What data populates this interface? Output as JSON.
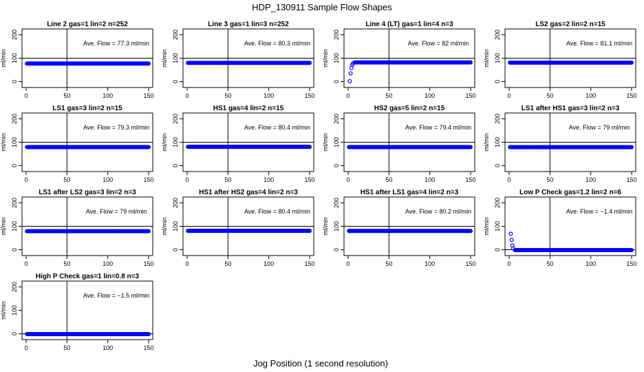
{
  "figure": {
    "title": "HDP_130911  Sample Flow Shapes",
    "xlabel": "Jog Position (1 second resolution)",
    "ylabel": "ml/min",
    "colors": {
      "points": "#0000ff",
      "axes": "#000000",
      "text": "#000000",
      "background": "#ffffff"
    }
  },
  "chart_data": [
    {
      "type": "scatter",
      "title": "Line 2 gas=1 lin=2 n=252",
      "annotation": "Ave. Flow =  77.3  ml/min",
      "xlim": [
        0,
        150
      ],
      "ylim": [
        -25,
        225
      ],
      "xticks": [
        0,
        50,
        100,
        150
      ],
      "yticks": [
        0,
        100,
        200
      ],
      "vline": 50,
      "hline": 100,
      "series": [
        {
          "name": "flow",
          "profile": "flat",
          "x_range": [
            1,
            150
          ],
          "value": 77.3
        }
      ]
    },
    {
      "type": "scatter",
      "title": "Line 3 gas=1 lin=3 n=252",
      "annotation": "Ave. Flow =  80.3  ml/min",
      "xlim": [
        0,
        150
      ],
      "ylim": [
        -25,
        225
      ],
      "xticks": [
        0,
        50,
        100,
        150
      ],
      "yticks": [
        0,
        100,
        200
      ],
      "vline": 50,
      "hline": 100,
      "series": [
        {
          "name": "flow",
          "profile": "flat",
          "x_range": [
            1,
            150
          ],
          "value": 80.3
        }
      ]
    },
    {
      "type": "scatter",
      "title": "Line 4 (LT) gas=1 lin=4 n=3",
      "annotation": "Ave. Flow =  82  ml/min",
      "xlim": [
        0,
        150
      ],
      "ylim": [
        -25,
        225
      ],
      "xticks": [
        0,
        50,
        100,
        150
      ],
      "yticks": [
        0,
        100,
        200
      ],
      "vline": 50,
      "hline": 100,
      "series": [
        {
          "name": "flow",
          "profile": "flat",
          "x_range": [
            8,
            150
          ],
          "value": 82,
          "extra_points": [
            {
              "x": 2,
              "y": 2
            },
            {
              "x": 3,
              "y": 35
            },
            {
              "x": 4,
              "y": 58
            },
            {
              "x": 5,
              "y": 72
            },
            {
              "x": 6,
              "y": 78
            }
          ]
        }
      ]
    },
    {
      "type": "scatter",
      "title": "LS2 gas=2 lin=2 n=15",
      "annotation": "Ave. Flow =  81.1  ml/min",
      "xlim": [
        0,
        150
      ],
      "ylim": [
        -25,
        225
      ],
      "xticks": [
        0,
        50,
        100,
        150
      ],
      "yticks": [
        0,
        100,
        200
      ],
      "vline": 50,
      "hline": 100,
      "series": [
        {
          "name": "flow",
          "profile": "flat",
          "x_range": [
            1,
            150
          ],
          "value": 81.1
        }
      ]
    },
    {
      "type": "scatter",
      "title": "LS1 gas=3 lin=2 n=15",
      "annotation": "Ave. Flow =  79.3  ml/min",
      "xlim": [
        0,
        150
      ],
      "ylim": [
        -25,
        225
      ],
      "xticks": [
        0,
        50,
        100,
        150
      ],
      "yticks": [
        0,
        100,
        200
      ],
      "vline": 50,
      "hline": 100,
      "series": [
        {
          "name": "flow",
          "profile": "flat",
          "x_range": [
            1,
            150
          ],
          "value": 79.3
        }
      ]
    },
    {
      "type": "scatter",
      "title": "HS1 gas=4 lin=2 n=15",
      "annotation": "Ave. Flow =  80.4  ml/min",
      "xlim": [
        0,
        150
      ],
      "ylim": [
        -25,
        225
      ],
      "xticks": [
        0,
        50,
        100,
        150
      ],
      "yticks": [
        0,
        100,
        200
      ],
      "vline": 50,
      "hline": 100,
      "series": [
        {
          "name": "flow",
          "profile": "flat",
          "x_range": [
            1,
            150
          ],
          "value": 80.4
        }
      ]
    },
    {
      "type": "scatter",
      "title": "HS2 gas=5 lin=2 n=15",
      "annotation": "Ave. Flow =  79.4  ml/min",
      "xlim": [
        0,
        150
      ],
      "ylim": [
        -25,
        225
      ],
      "xticks": [
        0,
        50,
        100,
        150
      ],
      "yticks": [
        0,
        100,
        200
      ],
      "vline": 50,
      "hline": 100,
      "series": [
        {
          "name": "flow",
          "profile": "flat",
          "x_range": [
            1,
            150
          ],
          "value": 79.4
        }
      ]
    },
    {
      "type": "scatter",
      "title": "LS1 after HS1 gas=3 lin=2 n=3",
      "annotation": "Ave. Flow =  79  ml/min",
      "xlim": [
        0,
        150
      ],
      "ylim": [
        -25,
        225
      ],
      "xticks": [
        0,
        50,
        100,
        150
      ],
      "yticks": [
        0,
        100,
        200
      ],
      "vline": 50,
      "hline": 100,
      "series": [
        {
          "name": "flow",
          "profile": "flat",
          "x_range": [
            1,
            150
          ],
          "value": 79
        }
      ]
    },
    {
      "type": "scatter",
      "title": "LS1 after LS2 gas=3 lin=2 n=3",
      "annotation": "Ave. Flow =  79  ml/min",
      "xlim": [
        0,
        150
      ],
      "ylim": [
        -25,
        225
      ],
      "xticks": [
        0,
        50,
        100,
        150
      ],
      "yticks": [
        0,
        100,
        200
      ],
      "vline": 50,
      "hline": 100,
      "series": [
        {
          "name": "flow",
          "profile": "flat",
          "x_range": [
            1,
            150
          ],
          "value": 79
        }
      ]
    },
    {
      "type": "scatter",
      "title": "HS1 after HS2 gas=4 lin=2 n=3",
      "annotation": "Ave. Flow =  80.4  ml/min",
      "xlim": [
        0,
        150
      ],
      "ylim": [
        -25,
        225
      ],
      "xticks": [
        0,
        50,
        100,
        150
      ],
      "yticks": [
        0,
        100,
        200
      ],
      "vline": 50,
      "hline": 100,
      "series": [
        {
          "name": "flow",
          "profile": "flat",
          "x_range": [
            1,
            150
          ],
          "value": 80.4
        }
      ]
    },
    {
      "type": "scatter",
      "title": "HS1 after LS1 gas=4 lin=2 n=3",
      "annotation": "Ave. Flow =  80.2  ml/min",
      "xlim": [
        0,
        150
      ],
      "ylim": [
        -25,
        225
      ],
      "xticks": [
        0,
        50,
        100,
        150
      ],
      "yticks": [
        0,
        100,
        200
      ],
      "vline": 50,
      "hline": 100,
      "series": [
        {
          "name": "flow",
          "profile": "flat",
          "x_range": [
            1,
            150
          ],
          "value": 80.2
        }
      ]
    },
    {
      "type": "scatter",
      "title": "Low P Check gas=1.2 lin=2 n=6",
      "annotation": "Ave. Flow =  −1.4  ml/min",
      "xlim": [
        0,
        150
      ],
      "ylim": [
        -25,
        225
      ],
      "xticks": [
        0,
        50,
        100,
        150
      ],
      "yticks": [
        0,
        100,
        200
      ],
      "vline": 50,
      "hline": 0,
      "series": [
        {
          "name": "flow",
          "profile": "flat",
          "x_range": [
            7,
            150
          ],
          "value": -1.4,
          "extra_points": [
            {
              "x": 2,
              "y": 68
            },
            {
              "x": 3,
              "y": 42
            },
            {
              "x": 4,
              "y": 18
            },
            {
              "x": 5,
              "y": 6
            }
          ]
        }
      ]
    },
    {
      "type": "scatter",
      "title": "High P Check gas=1 lin=0.8 n=3",
      "annotation": "Ave. Flow =  −1.5  ml/min",
      "xlim": [
        0,
        150
      ],
      "ylim": [
        -25,
        225
      ],
      "xticks": [
        0,
        50,
        100,
        150
      ],
      "yticks": [
        0,
        100,
        200
      ],
      "vline": 50,
      "hline": 0,
      "series": [
        {
          "name": "flow",
          "profile": "flat",
          "x_range": [
            1,
            150
          ],
          "value": -1.5
        }
      ]
    }
  ]
}
